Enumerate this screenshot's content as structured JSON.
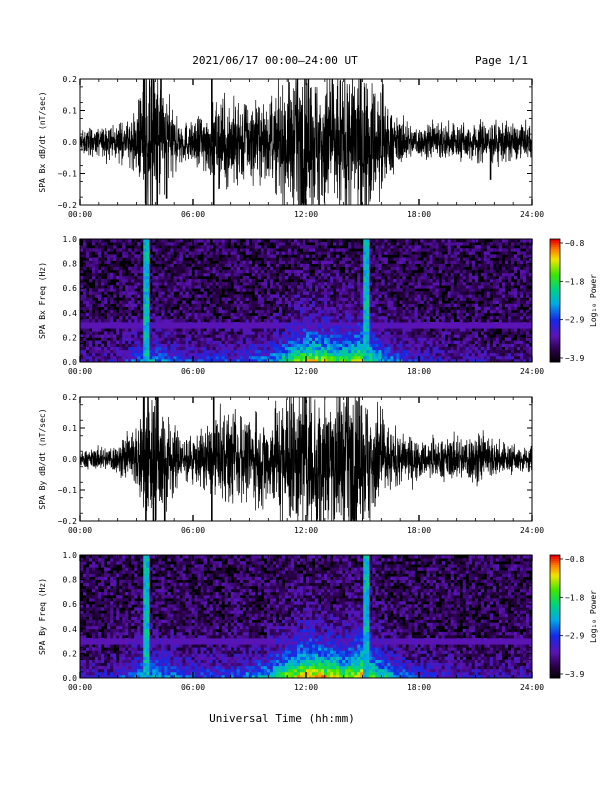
{
  "header": {
    "title": "2021/06/17  00:00–24:00 UT",
    "page": "Page 1/1"
  },
  "footer": {
    "xlabel": "Universal Time (hh:mm)"
  },
  "chart_data": [
    {
      "type": "line",
      "ylabel": "SPA Bx dB/dt (nT/sec)",
      "xlim": [
        0,
        24
      ],
      "ylim": [
        -0.2,
        0.2
      ],
      "x_ticks": [
        "00:00",
        "06:00",
        "12:00",
        "18:00",
        "24:00"
      ],
      "y_ticks": [
        "−0.2",
        "−0.1",
        "0.0",
        "0.1",
        "0.2"
      ],
      "envelope": {
        "x": [
          0,
          1,
          2,
          3,
          3.5,
          4,
          4.5,
          5,
          6,
          7,
          8,
          9,
          10,
          11,
          11.5,
          12,
          13,
          14,
          15,
          16,
          16.5,
          17,
          18,
          19,
          20,
          21,
          22,
          23,
          24
        ],
        "amp": [
          0.03,
          0.04,
          0.04,
          0.07,
          0.2,
          0.2,
          0.15,
          0.07,
          0.05,
          0.1,
          0.12,
          0.1,
          0.1,
          0.16,
          0.2,
          0.2,
          0.2,
          0.2,
          0.2,
          0.15,
          0.08,
          0.06,
          0.04,
          0.05,
          0.05,
          0.05,
          0.06,
          0.05,
          0.04
        ]
      },
      "spikes": [
        {
          "x": 3.4,
          "y": 0.2
        },
        {
          "x": 3.5,
          "y": -0.2
        },
        {
          "x": 3.9,
          "y": 0.2
        },
        {
          "x": 4.1,
          "y": -0.2
        },
        {
          "x": 4.3,
          "y": 0.2
        },
        {
          "x": 4.6,
          "y": -0.18
        },
        {
          "x": 7.0,
          "y": 0.2
        },
        {
          "x": 7.1,
          "y": -0.2
        },
        {
          "x": 21.8,
          "y": -0.12
        }
      ]
    },
    {
      "type": "heatmap",
      "ylabel": "SPA Bx Freq (Hz)",
      "xlim": [
        0,
        24
      ],
      "ylim": [
        0,
        1.0
      ],
      "x_ticks": [
        "00:00",
        "06:00",
        "12:00",
        "18:00",
        "24:00"
      ],
      "y_ticks": [
        "0.0",
        "0.2",
        "0.4",
        "0.6",
        "0.8",
        "1.0"
      ],
      "colorbar": {
        "label": "Log₁₀ Power",
        "range": [
          -3.9,
          -0.8
        ],
        "ticks": [
          "−0.8",
          "−1.8",
          "−2.9",
          "−3.9"
        ]
      },
      "activity": {
        "x": [
          0,
          2,
          3,
          4,
          5,
          6,
          8,
          10,
          11,
          12,
          13,
          14,
          15,
          16,
          17,
          18,
          20,
          22,
          24
        ],
        "level": [
          0.1,
          0.15,
          0.35,
          0.4,
          0.3,
          0.25,
          0.25,
          0.35,
          0.55,
          0.75,
          0.7,
          0.6,
          0.8,
          0.45,
          0.3,
          0.2,
          0.15,
          0.12,
          0.1
        ]
      },
      "bright_columns": [
        3.5,
        3.6,
        15.2,
        15.3
      ]
    },
    {
      "type": "line",
      "ylabel": "SPA By dB/dt (nT/sec)",
      "xlim": [
        0,
        24
      ],
      "ylim": [
        -0.2,
        0.2
      ],
      "x_ticks": [
        "00:00",
        "06:00",
        "12:00",
        "18:00",
        "24:00"
      ],
      "y_ticks": [
        "−0.2",
        "−0.1",
        "0.0",
        "0.1",
        "0.2"
      ],
      "envelope": {
        "x": [
          0,
          1,
          2,
          3,
          3.5,
          4,
          4.5,
          5,
          6,
          7,
          8,
          9,
          10,
          11,
          11.5,
          12,
          13,
          14,
          15,
          16,
          16.5,
          17,
          18,
          19,
          20,
          21,
          22,
          23,
          24
        ],
        "amp": [
          0.02,
          0.03,
          0.04,
          0.08,
          0.2,
          0.2,
          0.16,
          0.08,
          0.06,
          0.1,
          0.12,
          0.11,
          0.12,
          0.2,
          0.2,
          0.2,
          0.2,
          0.2,
          0.2,
          0.14,
          0.08,
          0.07,
          0.05,
          0.05,
          0.06,
          0.07,
          0.05,
          0.04,
          0.03
        ]
      },
      "spikes": [
        {
          "x": 3.4,
          "y": 0.2
        },
        {
          "x": 3.5,
          "y": -0.2
        },
        {
          "x": 3.9,
          "y": -0.2
        },
        {
          "x": 4.1,
          "y": 0.2
        },
        {
          "x": 4.5,
          "y": -0.2
        },
        {
          "x": 7.0,
          "y": -0.2
        },
        {
          "x": 7.1,
          "y": 0.2
        }
      ]
    },
    {
      "type": "heatmap",
      "ylabel": "SPA By Freq (Hz)",
      "xlim": [
        0,
        24
      ],
      "ylim": [
        0,
        1.0
      ],
      "x_ticks": [
        "00:00",
        "06:00",
        "12:00",
        "18:00",
        "24:00"
      ],
      "y_ticks": [
        "0.0",
        "0.2",
        "0.4",
        "0.6",
        "0.8",
        "1.0"
      ],
      "colorbar": {
        "label": "Log₁₀ Power",
        "range": [
          -3.9,
          -0.8
        ],
        "ticks": [
          "−0.8",
          "−1.8",
          "−2.9",
          "−3.9"
        ]
      },
      "activity": {
        "x": [
          0,
          2,
          3,
          4,
          5,
          6,
          8,
          10,
          11,
          12,
          13,
          14,
          15,
          16,
          17,
          18,
          20,
          22,
          24
        ],
        "level": [
          0.15,
          0.2,
          0.4,
          0.45,
          0.35,
          0.3,
          0.3,
          0.45,
          0.7,
          0.85,
          0.8,
          0.7,
          0.85,
          0.55,
          0.35,
          0.25,
          0.2,
          0.15,
          0.15
        ]
      },
      "bright_columns": [
        3.5,
        3.6,
        15.2,
        15.3
      ]
    }
  ]
}
